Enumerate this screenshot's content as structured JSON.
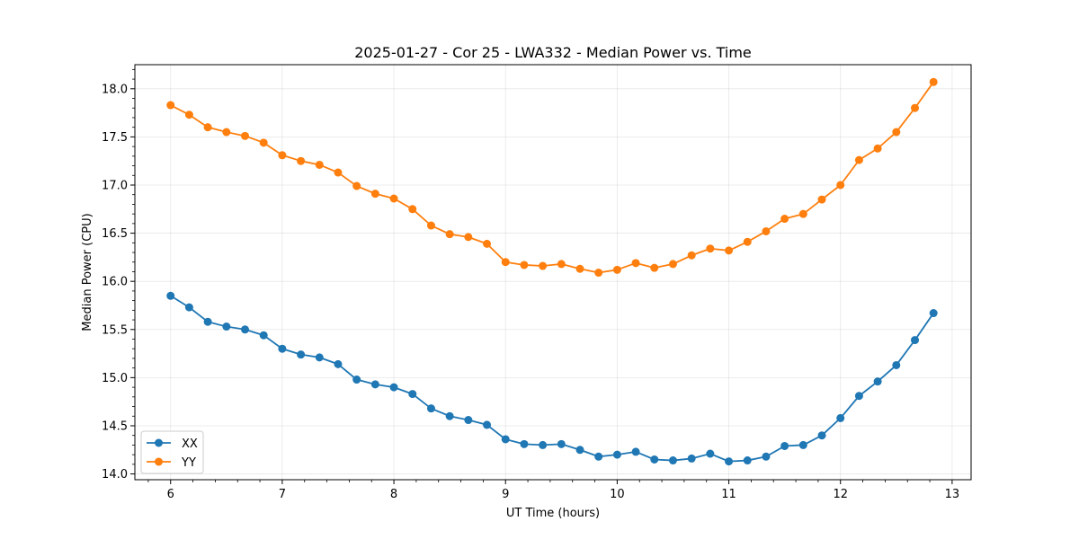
{
  "chart_data": {
    "type": "line",
    "title": "2025-01-27 - Cor 25 - LWA332 - Median Power vs. Time",
    "xlabel": "UT Time (hours)",
    "ylabel": "Median Power (CPU)",
    "xlim": [
      5.68,
      13.17
    ],
    "ylim": [
      13.94,
      18.25
    ],
    "xticks": [
      6,
      7,
      8,
      9,
      10,
      11,
      12,
      13
    ],
    "xtick_labels": [
      "6",
      "7",
      "8",
      "9",
      "10",
      "11",
      "12",
      "13"
    ],
    "yticks": [
      14.0,
      14.5,
      15.0,
      15.5,
      16.0,
      16.5,
      17.0,
      17.5,
      18.0
    ],
    "ytick_labels": [
      "14.0",
      "14.5",
      "15.0",
      "15.5",
      "16.0",
      "16.5",
      "17.0",
      "17.5",
      "18.0"
    ],
    "grid": true,
    "legend_position": "lower-left",
    "x": [
      6.0,
      6.1667,
      6.3333,
      6.5,
      6.6667,
      6.8333,
      7.0,
      7.1667,
      7.3333,
      7.5,
      7.6667,
      7.8333,
      8.0,
      8.1667,
      8.3333,
      8.5,
      8.6667,
      8.8333,
      9.0,
      9.1667,
      9.3333,
      9.5,
      9.6667,
      9.8333,
      10.0,
      10.1667,
      10.3333,
      10.5,
      10.6667,
      10.8333,
      11.0,
      11.1667,
      11.3333,
      11.5,
      11.6667,
      11.8333,
      12.0,
      12.1667,
      12.3333,
      12.5,
      12.6667,
      12.8333
    ],
    "series": [
      {
        "name": "XX",
        "color": "#1f77b4",
        "values": [
          15.85,
          15.73,
          15.58,
          15.53,
          15.5,
          15.44,
          15.3,
          15.24,
          15.21,
          15.14,
          14.98,
          14.93,
          14.9,
          14.83,
          14.68,
          14.6,
          14.56,
          14.51,
          14.36,
          14.31,
          14.3,
          14.31,
          14.25,
          14.18,
          14.2,
          14.23,
          14.15,
          14.14,
          14.16,
          14.21,
          14.13,
          14.14,
          14.18,
          14.29,
          14.3,
          14.4,
          14.58,
          14.81,
          14.96,
          15.13,
          15.39,
          15.67
        ]
      },
      {
        "name": "YY",
        "color": "#ff7f0e",
        "values": [
          17.83,
          17.73,
          17.6,
          17.55,
          17.51,
          17.44,
          17.31,
          17.25,
          17.21,
          17.13,
          16.99,
          16.91,
          16.86,
          16.75,
          16.58,
          16.49,
          16.46,
          16.39,
          16.2,
          16.17,
          16.16,
          16.18,
          16.13,
          16.09,
          16.12,
          16.19,
          16.14,
          16.18,
          16.27,
          16.34,
          16.32,
          16.41,
          16.52,
          16.65,
          16.7,
          16.85,
          17.0,
          17.26,
          17.38,
          17.55,
          17.8,
          18.07
        ]
      }
    ]
  }
}
